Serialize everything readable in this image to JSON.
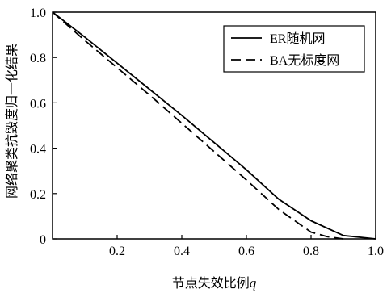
{
  "chart_data": {
    "type": "line",
    "xlabel": "节点失效比例",
    "xlabel_var": "q",
    "ylabel": "网络聚类抗毁度归一化结果",
    "xlim": [
      0,
      1.0
    ],
    "ylim": [
      0,
      1.0
    ],
    "xticks": [
      0.2,
      0.4,
      0.6,
      0.8,
      1.0
    ],
    "xtick_labels": [
      "0.2",
      "0.4",
      "0.6",
      "0.8",
      "1.0"
    ],
    "yticks": [
      0,
      0.2,
      0.4,
      0.6,
      0.8,
      1.0
    ],
    "ytick_labels": [
      "0",
      "0.2",
      "0.4",
      "0.6",
      "0.8",
      "1.0"
    ],
    "grid": false,
    "legend_position": "top-right",
    "series": [
      {
        "name": "ER随机网",
        "style": "solid",
        "color": "#000000",
        "x": [
          0,
          0.1,
          0.2,
          0.3,
          0.4,
          0.5,
          0.6,
          0.7,
          0.8,
          0.9,
          1.0
        ],
        "y": [
          1.0,
          0.89,
          0.775,
          0.66,
          0.545,
          0.425,
          0.305,
          0.175,
          0.08,
          0.015,
          0.0
        ]
      },
      {
        "name": "BA无标度网",
        "style": "dashed",
        "color": "#000000",
        "x": [
          0,
          0.1,
          0.2,
          0.3,
          0.4,
          0.5,
          0.6,
          0.7,
          0.8,
          0.85,
          0.9
        ],
        "y": [
          1.0,
          0.875,
          0.755,
          0.635,
          0.51,
          0.385,
          0.26,
          0.13,
          0.03,
          0.01,
          0.0
        ]
      }
    ]
  }
}
